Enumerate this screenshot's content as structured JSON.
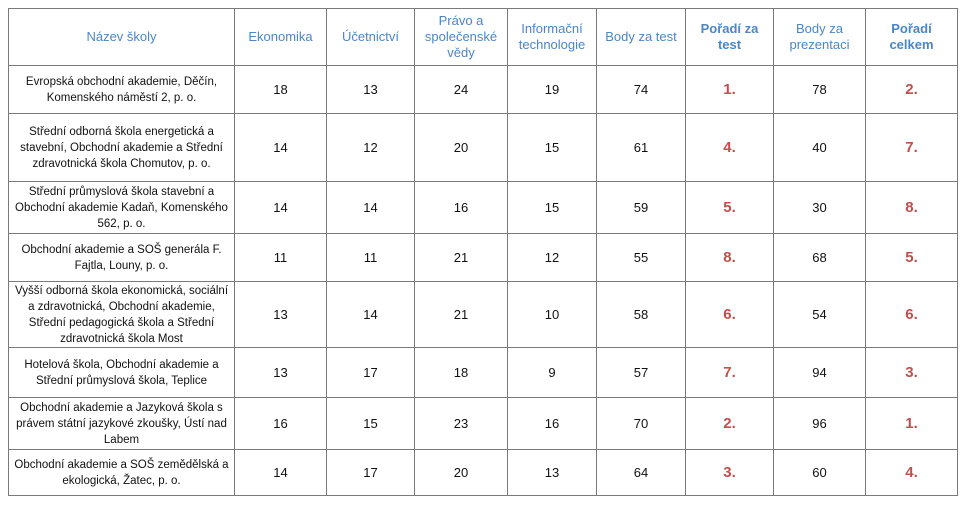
{
  "headers": {
    "school": "Název školy",
    "economics": "Ekonomika",
    "accounting": "Účetnictví",
    "law": "Právo a společenské vědy",
    "it": "Informační technologie",
    "test_points": "Body za test",
    "test_rank": "Pořadí za test",
    "presentation_points": "Body za prezentaci",
    "overall_rank": "Pořadí celkem"
  },
  "rows": [
    {
      "school": "Evropská obchodní akademie, Děčín, Komenského náměstí 2, p. o.",
      "economics": "18",
      "accounting": "13",
      "law": "24",
      "it": "19",
      "test_points": "74",
      "test_rank": "1.",
      "presentation_points": "78",
      "overall_rank": "2."
    },
    {
      "school": "Střední odborná škola energetická a stavební, Obchodní akademie a Střední zdravotnická škola Chomutov, p. o.",
      "economics": "14",
      "accounting": "12",
      "law": "20",
      "it": "15",
      "test_points": "61",
      "test_rank": "4.",
      "presentation_points": "40",
      "overall_rank": "7."
    },
    {
      "school": "Střední průmyslová škola stavební a Obchodní akademie Kadaň, Komenského 562, p. o.",
      "economics": "14",
      "accounting": "14",
      "law": "16",
      "it": "15",
      "test_points": "59",
      "test_rank": "5.",
      "presentation_points": "30",
      "overall_rank": "8."
    },
    {
      "school": "Obchodní akademie a SOŠ generála F. Fajtla, Louny, p. o.",
      "economics": "11",
      "accounting": "11",
      "law": "21",
      "it": "12",
      "test_points": "55",
      "test_rank": "8.",
      "presentation_points": "68",
      "overall_rank": "5."
    },
    {
      "school": "Vyšší odborná škola ekonomická, sociální a zdravotnická, Obchodní akademie, Střední pedagogická škola a Střední zdravotnická škola Most",
      "economics": "13",
      "accounting": "14",
      "law": "21",
      "it": "10",
      "test_points": "58",
      "test_rank": "6.",
      "presentation_points": "54",
      "overall_rank": "6."
    },
    {
      "school": "Hotelová škola, Obchodní akademie a Střední průmyslová škola, Teplice",
      "economics": "13",
      "accounting": "17",
      "law": "18",
      "it": "9",
      "test_points": "57",
      "test_rank": "7.",
      "presentation_points": "94",
      "overall_rank": "3."
    },
    {
      "school": "Obchodní akademie a Jazyková škola s právem státní jazykové zkoušky, Ústí nad Labem",
      "economics": "16",
      "accounting": "15",
      "law": "23",
      "it": "16",
      "test_points": "70",
      "test_rank": "2.",
      "presentation_points": "96",
      "overall_rank": "1."
    },
    {
      "school": "Obchodní akademie a SOŠ zemědělská a ekologická, Žatec, p. o.",
      "economics": "14",
      "accounting": "17",
      "law": "20",
      "it": "13",
      "test_points": "64",
      "test_rank": "3.",
      "presentation_points": "60",
      "overall_rank": "4."
    }
  ]
}
